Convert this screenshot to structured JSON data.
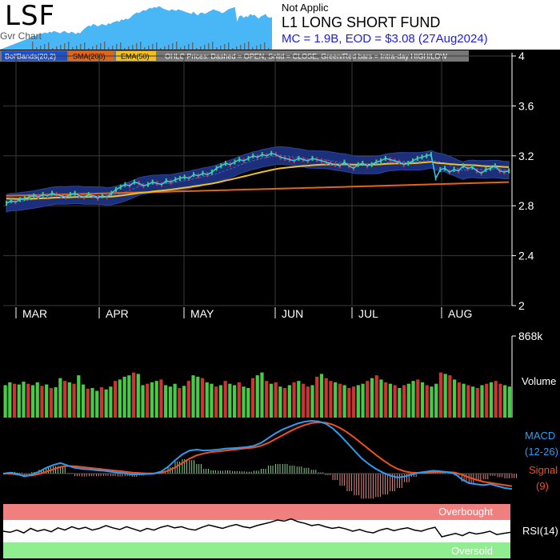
{
  "header": {
    "ticker": "LSF",
    "subtag": "Gvr Chart",
    "sector": "Not Applic",
    "name": "L1 LONG SHORT FUND",
    "market_info": "MC = 1.9B, EOD = $3.08 (27Aug2024)"
  },
  "legend": {
    "boll": "BollBands(20,2)",
    "sma": "SMA(200)",
    "ema": "EMA(50)",
    "ohlc_note": "OHLC Prices: Dashed = OPEN, Solid = CLOSE, Green/Red bars = Intra-day HIGH/LOW"
  },
  "colors": {
    "background": "#000000",
    "boll_band": "#1c2f7a",
    "price": "#38c8f0",
    "sma": "#e0661a",
    "ema": "#f0c020",
    "up": "#44cc44",
    "down": "#cc3333",
    "macd": "#2e9cf0",
    "signal": "#f05020",
    "overbought": "#f08080",
    "oversold": "#90ee90"
  },
  "chart_data": [
    {
      "type": "line",
      "title": "Price",
      "months": [
        "MAR",
        "APR",
        "MAY",
        "JUN",
        "JUL",
        "AUG"
      ],
      "ylim": [
        2,
        4
      ],
      "yticks": [
        "4",
        "3.6",
        "3.2",
        "2.8",
        "2.4",
        "2"
      ],
      "close": [
        2.82,
        2.84,
        2.83,
        2.85,
        2.86,
        2.87,
        2.88,
        2.87,
        2.89,
        2.88,
        2.9,
        2.89,
        2.88,
        2.87,
        2.89,
        2.9,
        2.88,
        2.87,
        2.89,
        2.88,
        2.86,
        2.88,
        2.87,
        2.9,
        2.93,
        2.95,
        2.97,
        2.96,
        2.99,
        2.98,
        2.96,
        2.97,
        2.99,
        2.98,
        2.97,
        3.0,
        2.99,
        3.01,
        3.02,
        3.03,
        3.02,
        3.05,
        3.04,
        3.06,
        3.05,
        3.07,
        3.1,
        3.12,
        3.14,
        3.13,
        3.15,
        3.17,
        3.16,
        3.18,
        3.2,
        3.19,
        3.21,
        3.2,
        3.22,
        3.21,
        3.19,
        3.18,
        3.17,
        3.16,
        3.18,
        3.17,
        3.16,
        3.18,
        3.17,
        3.16,
        3.15,
        3.14,
        3.13,
        3.12,
        3.15,
        3.12,
        3.1,
        3.13,
        3.14,
        3.12,
        3.13,
        3.15,
        3.16,
        3.18,
        3.17,
        3.16,
        3.15,
        3.13,
        3.14,
        3.16,
        3.18,
        3.19,
        3.2,
        3.21,
        3.02,
        3.09,
        3.1,
        3.07,
        3.09,
        3.08,
        3.12,
        3.1,
        3.11,
        3.08,
        3.06,
        3.09,
        3.1,
        3.12,
        3.08,
        3.07,
        3.08
      ],
      "sma200": [
        2.88,
        2.99
      ],
      "ema50_anchor": [
        2.86,
        3.1
      ]
    },
    {
      "type": "bar",
      "title": "Volume",
      "max_label": "868k",
      "values": [
        460,
        500,
        480,
        470,
        510,
        480,
        460,
        500,
        450,
        470,
        420,
        430,
        560,
        520,
        500,
        480,
        600,
        470,
        410,
        420,
        380,
        430,
        400,
        440,
        520,
        540,
        580,
        600,
        640,
        620,
        460,
        480,
        500,
        520,
        540,
        460,
        440,
        480,
        420,
        450,
        520,
        600,
        580,
        560,
        500,
        480,
        440,
        460,
        520,
        480,
        460,
        500,
        440,
        420,
        560,
        600,
        640,
        520,
        480,
        500,
        440,
        420,
        460,
        500,
        520,
        480,
        440,
        460,
        580,
        620,
        560,
        520,
        500,
        480,
        460,
        420,
        440,
        460,
        480,
        520,
        560,
        600,
        540,
        500,
        480,
        460,
        420,
        460,
        480,
        520,
        540,
        500,
        460,
        440,
        480,
        640,
        620,
        600,
        540,
        500,
        480,
        460,
        440,
        420,
        460,
        480,
        500,
        520,
        480,
        460,
        440
      ],
      "up": [
        true,
        true,
        false,
        true,
        true,
        false,
        true,
        true,
        false,
        true,
        false,
        true,
        true,
        false,
        true,
        false,
        true,
        true,
        false,
        true,
        true,
        false,
        true,
        true,
        false,
        true,
        true,
        true,
        false,
        true,
        true,
        false,
        true,
        true,
        false,
        true,
        true,
        true,
        false,
        true,
        false,
        true,
        true,
        false,
        true,
        true,
        false,
        true,
        false,
        true,
        true,
        false,
        true,
        true,
        false,
        true,
        true,
        false,
        true,
        false,
        true,
        false,
        true,
        false,
        true,
        false,
        false,
        true,
        false,
        true,
        false,
        false,
        true,
        false,
        true,
        false,
        false,
        true,
        true,
        false,
        true,
        false,
        true,
        false,
        true,
        false,
        true,
        false,
        true,
        true,
        false,
        true,
        false,
        true,
        true,
        false,
        true,
        false,
        true,
        false,
        true,
        false,
        true,
        false,
        true,
        false,
        true,
        false,
        false,
        true,
        true
      ]
    },
    {
      "type": "line",
      "title": "MACD",
      "labels": [
        "MACD",
        "(12-26)",
        "Signal",
        "(9)"
      ],
      "macd": [
        0,
        0.05,
        -0.02,
        -0.15,
        -0.05,
        0.1,
        0.3,
        0.45,
        0.55,
        0.42,
        0.3,
        0.25,
        0.22,
        0.18,
        0.15,
        0.1,
        0.05,
        0.02,
        -0.05,
        -0.03,
        -0.02,
        0,
        0.1,
        0.35,
        0.7,
        1.0,
        1.2,
        1.25,
        1.2,
        1.22,
        1.25,
        1.3,
        1.32,
        1.35,
        1.38,
        1.45,
        1.6,
        1.85,
        2.1,
        2.3,
        2.45,
        2.6,
        2.7,
        2.75,
        2.72,
        2.6,
        2.35,
        2.0,
        1.6,
        1.2,
        0.8,
        0.5,
        0.25,
        0.05,
        -0.1,
        -0.2,
        -0.15,
        -0.05,
        0.05,
        0.1,
        0.15,
        0.12,
        0.08,
        0.0,
        -0.3,
        -0.5,
        -0.55,
        -0.6,
        -0.55,
        -0.65,
        -0.75,
        -0.8
      ],
      "signal": [
        0,
        0.0,
        -0.05,
        -0.1,
        -0.1,
        -0.02,
        0.1,
        0.22,
        0.35,
        0.4,
        0.38,
        0.34,
        0.3,
        0.26,
        0.22,
        0.18,
        0.14,
        0.1,
        0.05,
        0.03,
        0.01,
        0.01,
        0.04,
        0.15,
        0.32,
        0.55,
        0.78,
        0.95,
        1.05,
        1.12,
        1.16,
        1.2,
        1.24,
        1.28,
        1.32,
        1.36,
        1.45,
        1.6,
        1.8,
        2.0,
        2.2,
        2.38,
        2.52,
        2.63,
        2.68,
        2.65,
        2.55,
        2.38,
        2.15,
        1.88,
        1.58,
        1.28,
        0.98,
        0.7,
        0.45,
        0.25,
        0.12,
        0.05,
        0.04,
        0.05,
        0.07,
        0.08,
        0.08,
        0.06,
        -0.05,
        -0.2,
        -0.32,
        -0.42,
        -0.48,
        -0.54,
        -0.6,
        -0.66
      ]
    },
    {
      "type": "line",
      "title": "RSI(14)",
      "zones": [
        "Overbought",
        "Oversold"
      ],
      "ylim": [
        0,
        100
      ],
      "values": [
        50,
        48,
        52,
        47,
        55,
        50,
        53,
        49,
        56,
        52,
        58,
        54,
        57,
        52,
        55,
        60,
        56,
        53,
        58,
        54,
        50,
        55,
        52,
        57,
        60,
        56,
        58,
        54,
        52,
        57,
        61,
        58,
        55,
        59,
        62,
        58,
        56,
        60,
        63,
        66,
        70,
        68,
        72,
        67,
        64,
        60,
        62,
        58,
        55,
        57,
        54,
        50,
        53,
        49,
        47,
        52,
        55,
        51,
        54,
        56,
        52,
        50,
        54,
        57,
        40,
        43,
        46,
        42,
        48,
        45,
        47,
        50,
        44,
        46,
        48
      ]
    }
  ]
}
